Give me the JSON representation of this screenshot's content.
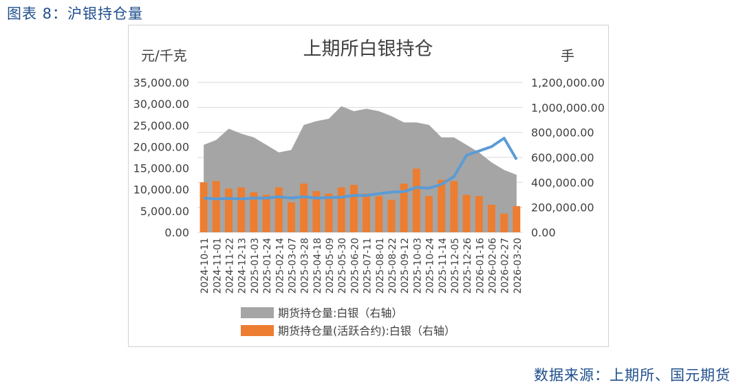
{
  "figure": {
    "caption": "图表 8：沪银持仓量",
    "source": "数据来源：上期所、国元期货"
  },
  "chart_data": {
    "type": "bar",
    "title": "上期所白银持仓",
    "y_left_label": "元/千克",
    "y_right_label": "手",
    "y_left_ticks": [
      "35,000.00",
      "30,000.00",
      "25,000.00",
      "20,000.00",
      "15,000.00",
      "10,000.00",
      "5,000.00",
      "0.00"
    ],
    "y_right_ticks": [
      "1,200,000.00",
      "1,000,000.00",
      "800,000.00",
      "600,000.00",
      "400,000.00",
      "200,000.00",
      "0.00"
    ],
    "y_left_range": [
      0,
      35000
    ],
    "y_right_range": [
      0,
      1200000
    ],
    "x_tick_labels": [
      "2024-10-11",
      "2024-11-01",
      "2024-11-22",
      "2024-12-13",
      "2025-01-03",
      "2025-01-24",
      "2025-02-14",
      "2025-03-07",
      "2025-03-28",
      "2025-04-18",
      "2025-05-09",
      "2025-05-30",
      "2025-06-20",
      "2025-07-11",
      "2025-08-01",
      "2025-08-22",
      "2025-09-12",
      "2025-10-03",
      "2025-10-24",
      "2025-11-14",
      "2025-12-05",
      "2025-12-26",
      "2026-01-16",
      "2026-02-06",
      "2026-02-27",
      "2026-03-20"
    ],
    "legend": [
      "期货持仓量:白银（右轴）",
      "期货持仓量(活跃合约):白银（右轴）"
    ],
    "series": [
      {
        "name": "期货持仓量:白银（右轴）",
        "axis": "right",
        "kind": "area",
        "color": "#a5a5a5",
        "values": [
          700000,
          740000,
          830000,
          790000,
          760000,
          700000,
          640000,
          660000,
          860000,
          890000,
          910000,
          1010000,
          970000,
          990000,
          970000,
          930000,
          880000,
          880000,
          860000,
          760000,
          760000,
          700000,
          640000,
          560000,
          500000,
          460000
        ]
      },
      {
        "name": "期货持仓量(活跃合约):白银（右轴）",
        "axis": "right",
        "kind": "bar",
        "color": "#ed7d31",
        "values": [
          400000,
          410000,
          350000,
          360000,
          320000,
          300000,
          360000,
          240000,
          390000,
          330000,
          310000,
          360000,
          380000,
          310000,
          290000,
          260000,
          390000,
          510000,
          290000,
          420000,
          410000,
          300000,
          290000,
          220000,
          150000,
          210000
        ]
      },
      {
        "name": "",
        "axis": "left",
        "kind": "line",
        "color": "#5b9bd5",
        "values": [
          8000,
          7800,
          7900,
          7800,
          8000,
          8000,
          8300,
          8000,
          8300,
          8000,
          8100,
          8200,
          8600,
          8600,
          9000,
          9400,
          9500,
          10500,
          10300,
          11200,
          13000,
          18000,
          19000,
          20000,
          22000,
          17000
        ]
      }
    ]
  }
}
